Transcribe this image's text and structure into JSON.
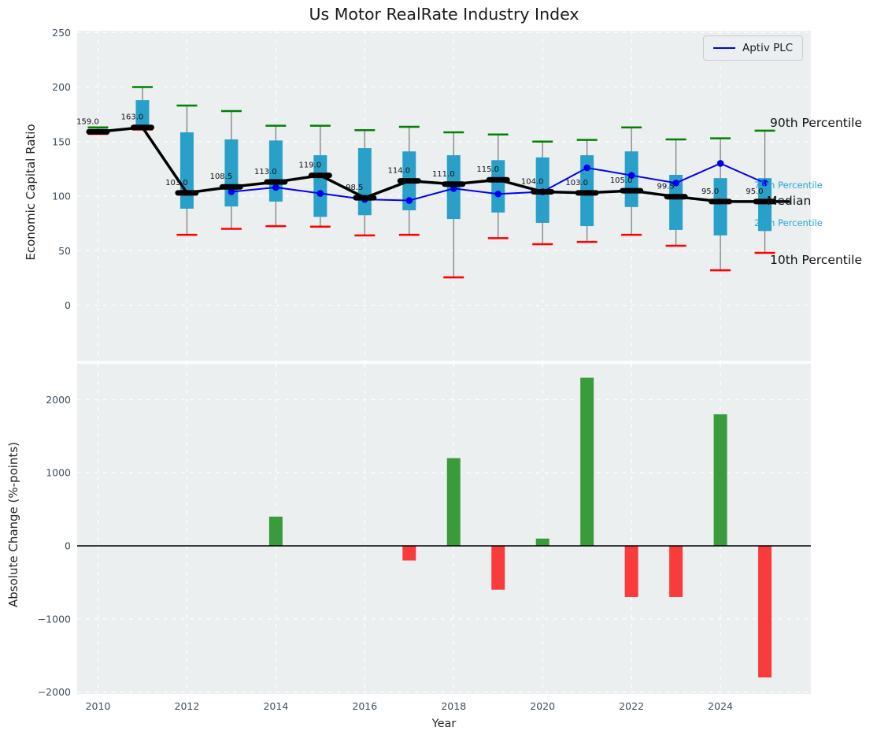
{
  "title": "Us Motor RealRate Industry Index",
  "legend": {
    "label": "Aptiv PLC"
  },
  "annotations": {
    "p90": "90th Percentile",
    "p75": "75th Percentile",
    "median": "Median",
    "p25": "25th Percentile",
    "p10": "10th Percentile"
  },
  "colors": {
    "plot_background": "#EBEFF0",
    "grid": "#FFFFFF",
    "box_fill": "#2AA0C9",
    "whisker": "#7F7F7F",
    "cap_90th": "#008000",
    "cap_10th": "#FF0000",
    "median_line": "#000000",
    "company_line": "#0000EE",
    "bar_positive": "#3A9B3C",
    "bar_negative": "#F93B3C",
    "tick_label": "#3D4D5C",
    "percentile_label_cyan": "#2AA5D2",
    "annotation_black": "#111111"
  },
  "chart_data": [
    {
      "type": "box",
      "title": "Us Motor RealRate Industry Index",
      "ylabel": "Economic Capital Ratio",
      "ylim": [
        -25,
        252
      ],
      "yticks": [
        0,
        50,
        100,
        150,
        200,
        250
      ],
      "grid": true,
      "legend_position": "upper right",
      "x": [
        2010,
        2011,
        2012,
        2013,
        2014,
        2015,
        2016,
        2017,
        2018,
        2019,
        2020,
        2021,
        2022,
        2023,
        2024,
        2025
      ],
      "series": [
        {
          "name": "90th Percentile",
          "values": [
            163,
            200,
            183,
            178,
            164.5,
            164.5,
            160.5,
            163.5,
            158.5,
            156.5,
            150,
            151.5,
            163,
            152,
            153,
            160
          ]
        },
        {
          "name": "75th Percentile",
          "values": [
            161,
            188,
            158.5,
            152,
            151,
            137.5,
            144,
            141,
            137.5,
            133,
            135.5,
            137.5,
            141,
            119.5,
            116.5,
            116.5
          ]
        },
        {
          "name": "Median",
          "values": [
            159,
            163,
            103,
            108.5,
            113,
            119,
            98.5,
            114,
            111,
            115,
            104,
            103,
            105,
            99.5,
            95,
            95
          ],
          "labels": [
            "159.0",
            "163.0",
            "103.0",
            "108.5",
            "113.0",
            "119.0",
            "98.5",
            "114.0",
            "111.0",
            "115.0",
            "104.0",
            "103.0",
            "105.0",
            "99.5",
            "95.0",
            "95.0"
          ]
        },
        {
          "name": "25th Percentile",
          "values": [
            157,
            164,
            88.5,
            90.5,
            95,
            81,
            82.5,
            87,
            79,
            85,
            75.5,
            72.5,
            90,
            69,
            64,
            68
          ]
        },
        {
          "name": "10th Percentile",
          "values": [
            157,
            161,
            64.5,
            70,
            72.5,
            72,
            64,
            64.5,
            25.5,
            61.5,
            56,
            58,
            64.5,
            54.5,
            32,
            48
          ]
        },
        {
          "name": "Aptiv PLC",
          "values": [
            null,
            null,
            null,
            104,
            108,
            102.5,
            97,
            96,
            107,
            102,
            104,
            126,
            119,
            112,
            130,
            112
          ]
        }
      ]
    },
    {
      "type": "bar",
      "ylabel": "Absolute Change (%-points)",
      "xlabel": "Year",
      "ylim": [
        -2100,
        2400
      ],
      "yticks": [
        2000,
        1000,
        0,
        -1000,
        -2000
      ],
      "xticks": [
        2010,
        2012,
        2014,
        2016,
        2018,
        2020,
        2022,
        2024
      ],
      "grid": true,
      "x": [
        2010,
        2011,
        2012,
        2013,
        2014,
        2015,
        2016,
        2017,
        2018,
        2019,
        2020,
        2021,
        2022,
        2023,
        2024,
        2025
      ],
      "values": [
        0,
        0,
        0,
        0,
        400,
        0,
        0,
        -200,
        1200,
        -600,
        100,
        2300,
        -700,
        -700,
        1800,
        -1800
      ]
    }
  ]
}
